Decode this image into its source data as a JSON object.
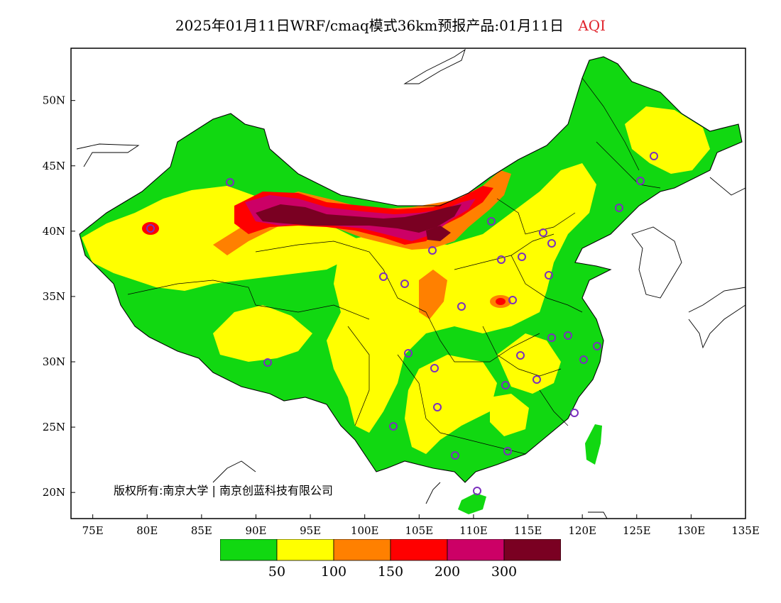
{
  "title": {
    "main": "2025年01月11日WRF/cmaq模式36km预报产品:01月11日",
    "variable": "AQI"
  },
  "copyright": "版权所有:南京大学 | 南京创蓝科技有限公司",
  "axes": {
    "lon_ticks": [
      "75E",
      "80E",
      "85E",
      "90E",
      "95E",
      "100E",
      "105E",
      "110E",
      "115E",
      "120E",
      "125E",
      "130E",
      "135E"
    ],
    "lat_ticks": [
      "20N",
      "25N",
      "30N",
      "35N",
      "40N",
      "45N",
      "50N"
    ],
    "lon_range": [
      73,
      135
    ],
    "lat_range": [
      18,
      54
    ]
  },
  "legend": {
    "colors": [
      "#11d811",
      "#ffff00",
      "#ff8000",
      "#ff0000",
      "#cc0066",
      "#7a0022"
    ],
    "labels": [
      "50",
      "100",
      "150",
      "200",
      "300"
    ]
  },
  "colors": {
    "good": "#11d811",
    "moderate": "#ffff00",
    "unhealthy_sensitive": "#ff8000",
    "unhealthy": "#ff0000",
    "very_unhealthy": "#cc0066",
    "hazardous": "#7a0022",
    "station_marker": "#7b2fbe",
    "title_variable": "#e0232b"
  }
}
